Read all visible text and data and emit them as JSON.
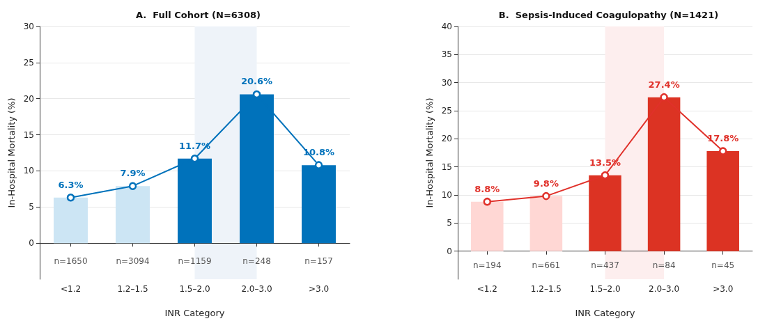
{
  "chart_data": [
    {
      "type": "bar",
      "title": "A.  Full Cohort (N=6308)",
      "xlabel": "INR Category",
      "ylabel": "In-Hospital Mortality (%)",
      "categories": [
        "<1.2",
        "1.2–1.5",
        "1.5–2.0",
        "2.0–3.0",
        ">3.0"
      ],
      "series": [
        {
          "values": [
            6.3,
            7.9,
            11.7,
            20.6,
            10.8
          ],
          "colors": [
            "#cce5f4",
            "#cce5f4",
            "#0072bb",
            "#0072bb",
            "#0072bb"
          ],
          "color": "#0072bb",
          "value_labels": [
            "6.3%",
            "7.9%",
            "11.7%",
            "20.6%",
            "10.8%"
          ]
        },
        {
          "type": "line",
          "values": [
            6.3,
            7.9,
            11.7,
            20.6,
            10.8
          ],
          "color": "#0072bb",
          "marker": "circle",
          "line_style": "solid"
        }
      ],
      "ylim": [
        -5,
        30
      ],
      "yticks": [
        0,
        5,
        10,
        15,
        20,
        25,
        30
      ],
      "grid": "y",
      "bands": [
        {
          "axis": "x",
          "from": "1.5–2.0",
          "to": "2.0–3.0",
          "color": "#eef3f9"
        }
      ],
      "annotations": [
        "n=1650",
        "n=3094",
        "n=1159",
        "n=248",
        "n=157"
      ]
    },
    {
      "type": "bar",
      "title": "B.  Sepsis-Induced Coagulopathy (N=1421)",
      "xlabel": "INR Category",
      "ylabel": "In-Hospital Mortality (%)",
      "categories": [
        "<1.2",
        "1.2–1.5",
        "1.5–2.0",
        "2.0–3.0",
        ">3.0"
      ],
      "series": [
        {
          "values": [
            8.8,
            9.8,
            13.5,
            27.4,
            17.8
          ],
          "colors": [
            "#ffd7d4",
            "#ffd7d4",
            "#dc3323",
            "#dc3323",
            "#dc3323"
          ],
          "color": "#e0312a",
          "value_labels": [
            "8.8%",
            "9.8%",
            "13.5%",
            "27.4%",
            "17.8%"
          ]
        },
        {
          "type": "line",
          "values": [
            8.8,
            9.8,
            13.5,
            27.4,
            17.8
          ],
          "color": "#e0312a",
          "marker": "circle",
          "line_style": "solid"
        }
      ],
      "ylim": [
        -5,
        40
      ],
      "yticks": [
        0,
        5,
        10,
        15,
        20,
        25,
        30,
        35,
        40
      ],
      "grid": "y",
      "bands": [
        {
          "axis": "x",
          "from": "1.5–2.0",
          "to": "2.0–3.0",
          "color": "#fdeeee"
        }
      ],
      "annotations": [
        "n=194",
        "n=661",
        "n=437",
        "n=84",
        "n=45"
      ]
    }
  ]
}
